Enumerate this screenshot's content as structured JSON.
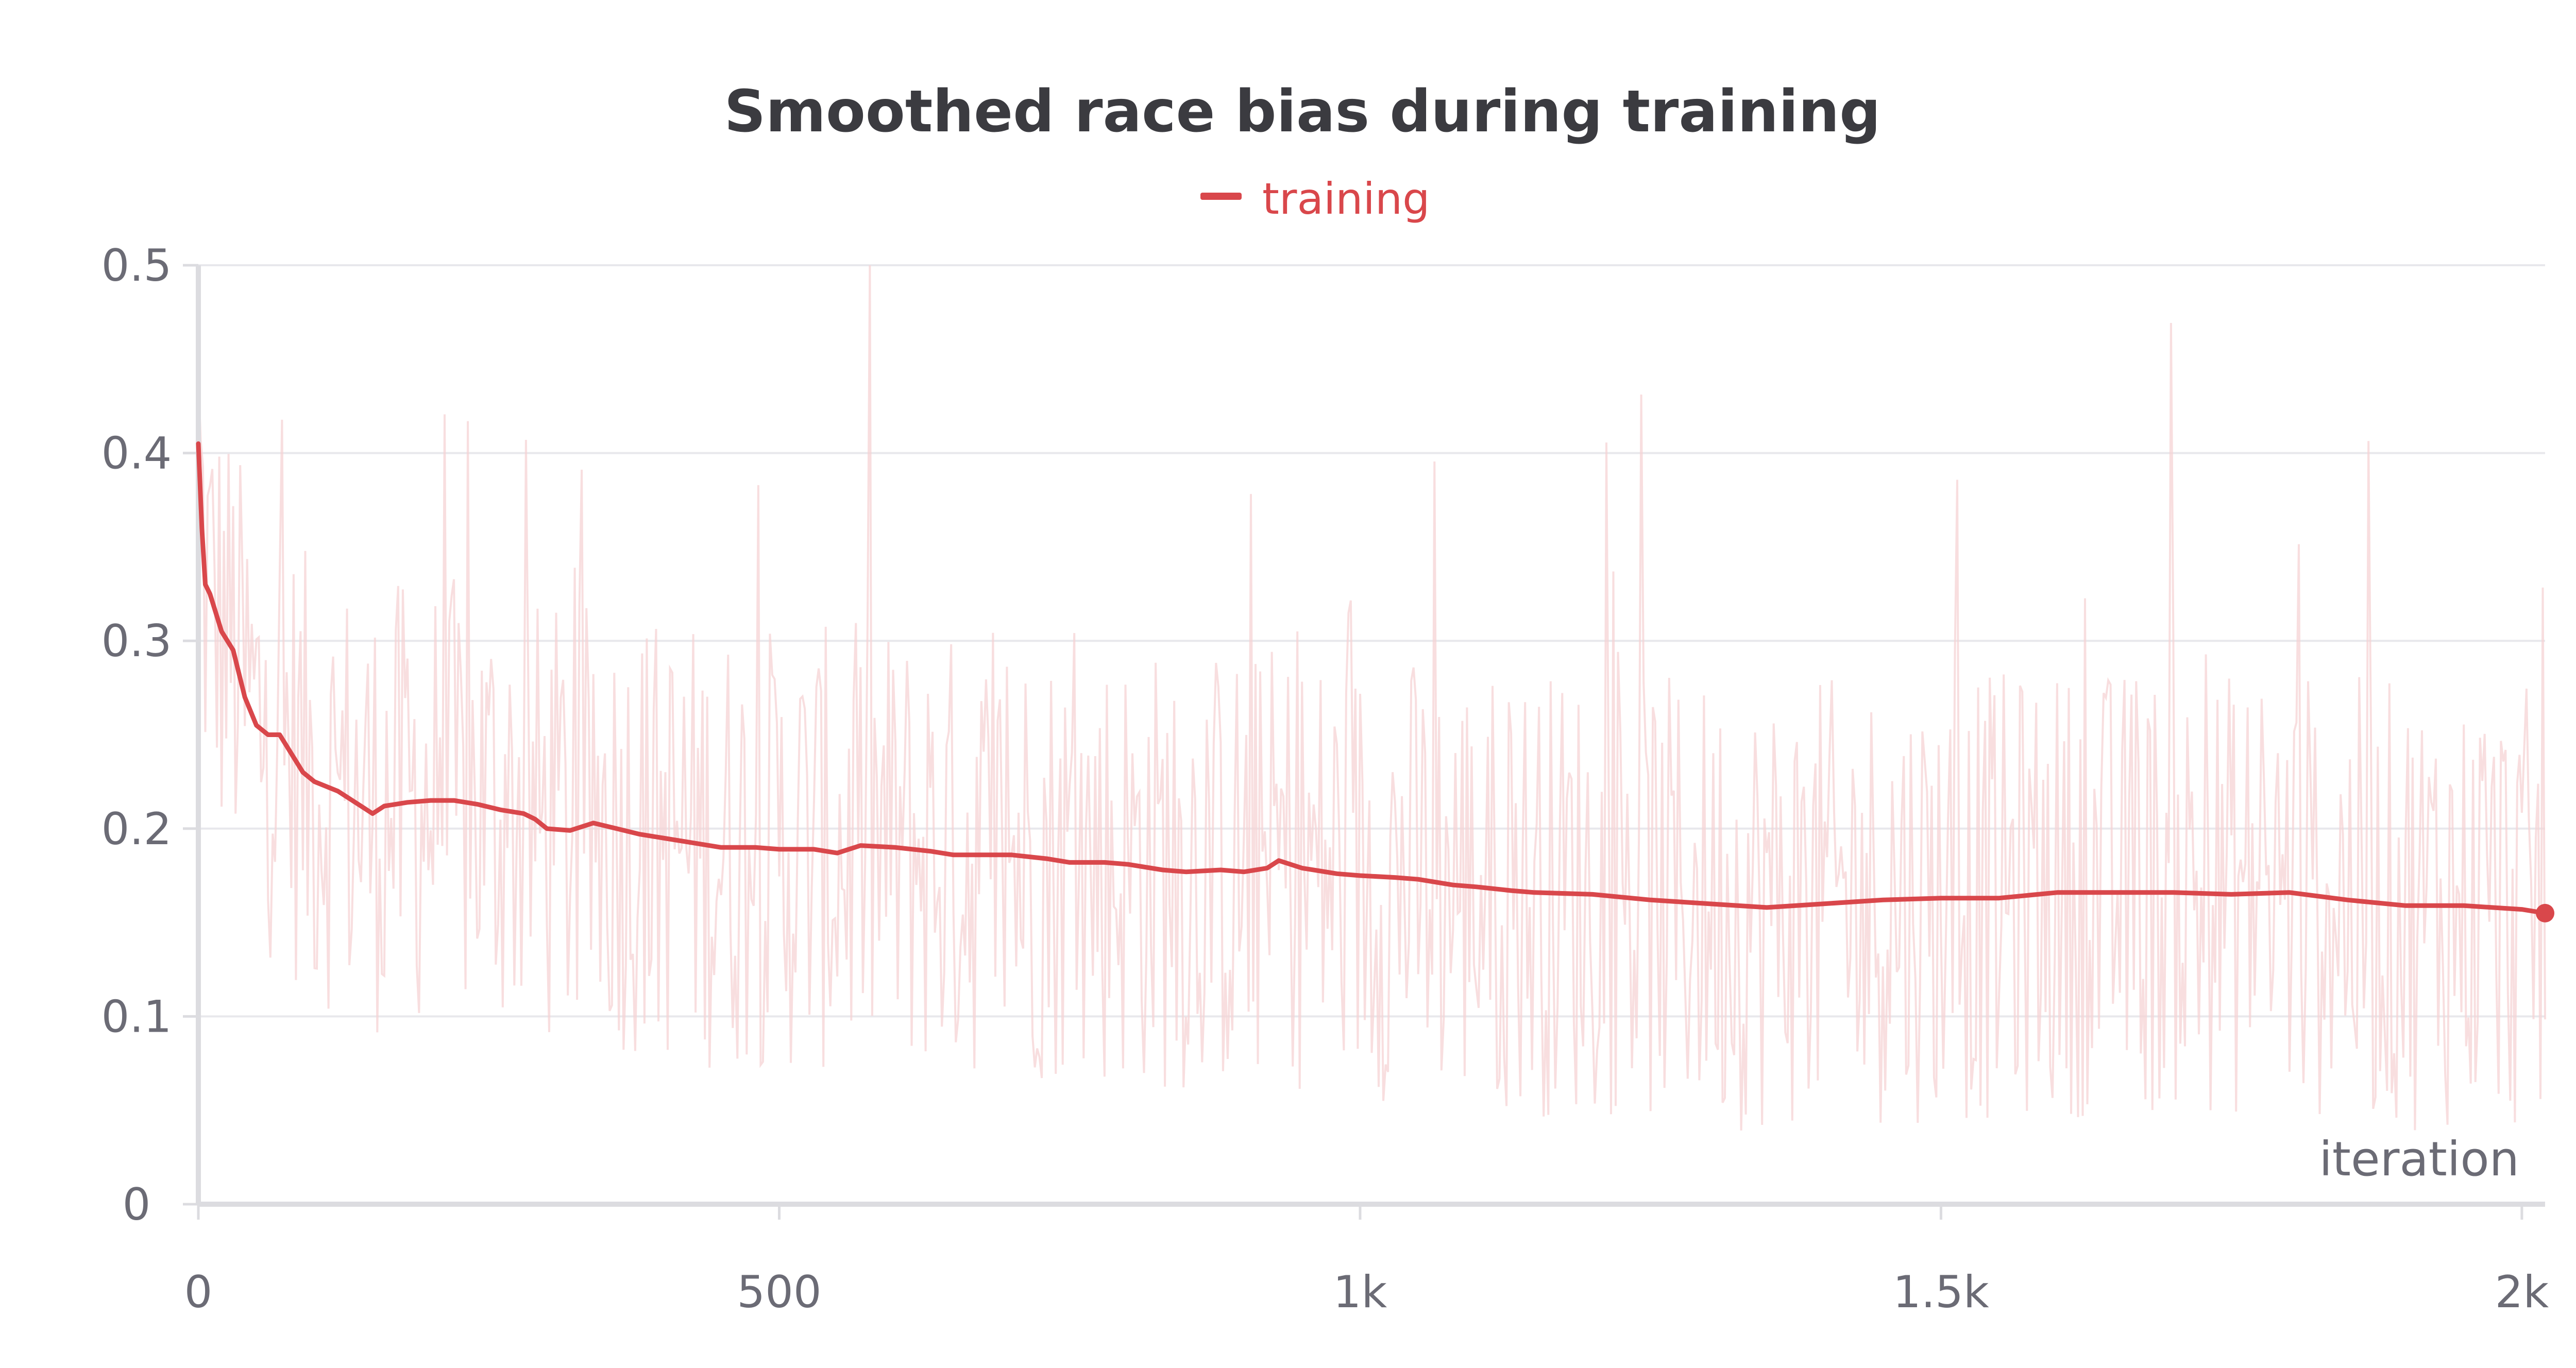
{
  "chart_data": {
    "type": "line",
    "title": "Smoothed race bias during training",
    "xlabel": "iteration",
    "ylabel": "",
    "xlim": [
      0,
      2020
    ],
    "ylim": [
      0,
      0.5
    ],
    "x_ticks": [
      {
        "value": 0,
        "label": "0"
      },
      {
        "value": 500,
        "label": "500"
      },
      {
        "value": 1000,
        "label": "1k"
      },
      {
        "value": 1500,
        "label": "1.5k"
      },
      {
        "value": 2000,
        "label": "2k"
      }
    ],
    "y_ticks": [
      {
        "value": 0,
        "label": "0"
      },
      {
        "value": 0.1,
        "label": "0.1"
      },
      {
        "value": 0.2,
        "label": "0.2"
      },
      {
        "value": 0.3,
        "label": "0.3"
      },
      {
        "value": 0.4,
        "label": "0.4"
      },
      {
        "value": 0.5,
        "label": "0.5"
      }
    ],
    "grid": true,
    "legend_position": "top-center",
    "series": [
      {
        "name": "training",
        "color": "#d9474b",
        "raw_color": "#f6d3d4",
        "smoothed": {
          "x": [
            0,
            3,
            6,
            10,
            15,
            20,
            30,
            40,
            50,
            60,
            70,
            80,
            90,
            100,
            120,
            140,
            150,
            160,
            180,
            200,
            220,
            240,
            260,
            280,
            290,
            300,
            320,
            340,
            360,
            380,
            400,
            420,
            450,
            480,
            500,
            530,
            550,
            570,
            600,
            630,
            650,
            680,
            700,
            730,
            750,
            780,
            800,
            830,
            850,
            880,
            900,
            920,
            930,
            950,
            980,
            1000,
            1030,
            1050,
            1080,
            1100,
            1130,
            1150,
            1200,
            1250,
            1300,
            1350,
            1400,
            1450,
            1500,
            1550,
            1600,
            1650,
            1700,
            1750,
            1800,
            1850,
            1900,
            1950,
            2000,
            2020
          ],
          "y": [
            0.405,
            0.36,
            0.33,
            0.325,
            0.315,
            0.305,
            0.295,
            0.27,
            0.255,
            0.25,
            0.25,
            0.24,
            0.23,
            0.225,
            0.22,
            0.212,
            0.208,
            0.212,
            0.214,
            0.215,
            0.215,
            0.213,
            0.21,
            0.208,
            0.205,
            0.2,
            0.199,
            0.203,
            0.2,
            0.197,
            0.195,
            0.193,
            0.19,
            0.19,
            0.189,
            0.189,
            0.187,
            0.191,
            0.19,
            0.188,
            0.186,
            0.186,
            0.186,
            0.184,
            0.182,
            0.182,
            0.181,
            0.178,
            0.177,
            0.178,
            0.177,
            0.179,
            0.183,
            0.179,
            0.176,
            0.175,
            0.174,
            0.173,
            0.17,
            0.169,
            0.167,
            0.166,
            0.165,
            0.162,
            0.16,
            0.158,
            0.16,
            0.162,
            0.163,
            0.163,
            0.166,
            0.166,
            0.166,
            0.165,
            0.166,
            0.162,
            0.159,
            0.159,
            0.157,
            0.155
          ]
        }
      }
    ]
  }
}
